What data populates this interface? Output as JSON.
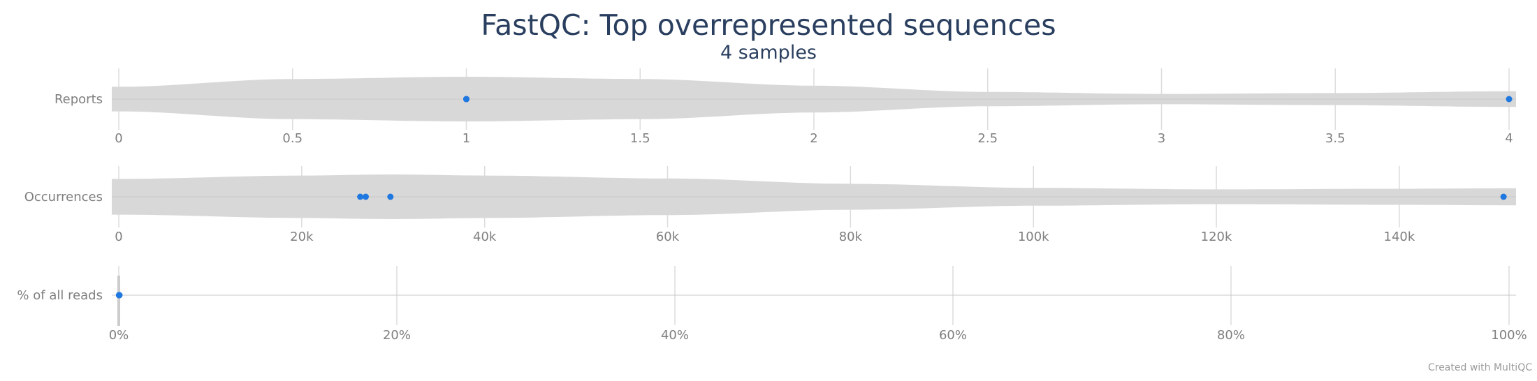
{
  "title": "FastQC: Top overrepresented sequences",
  "subtitle": "4 samples",
  "credit": "Created with MultiQC",
  "colors": {
    "point": "#1f77e0",
    "violin": "#d8d8d8",
    "grid": "#dcdcdc",
    "title": "#2a3f5f",
    "label": "#7f7f7f"
  },
  "chart_data": {
    "type": "violin",
    "title": "FastQC: Top overrepresented sequences",
    "subtitle": "4 samples",
    "grid": true,
    "rows": [
      {
        "label": "Reports",
        "xlim": [
          0,
          4
        ],
        "ticks": [
          0,
          0.5,
          1,
          1.5,
          2,
          2.5,
          3,
          3.5,
          4
        ],
        "tick_labels": [
          "0",
          "0.5",
          "1",
          "1.5",
          "2",
          "2.5",
          "3",
          "3.5",
          "4"
        ],
        "points": [
          1,
          1,
          1,
          4
        ],
        "density": [
          [
            0,
            0.55
          ],
          [
            0.5,
            0.9
          ],
          [
            1,
            1.0
          ],
          [
            1.5,
            0.9
          ],
          [
            2,
            0.6
          ],
          [
            2.5,
            0.32
          ],
          [
            3,
            0.23
          ],
          [
            3.5,
            0.27
          ],
          [
            4,
            0.35
          ]
        ]
      },
      {
        "label": "Occurrences",
        "xlim": [
          0,
          152000
        ],
        "ticks": [
          0,
          20000,
          40000,
          60000,
          80000,
          100000,
          120000,
          140000
        ],
        "tick_labels": [
          "0",
          "20k",
          "40k",
          "60k",
          "80k",
          "100k",
          "120k",
          "140k"
        ],
        "points": [
          26400,
          27000,
          29700,
          151400
        ],
        "density": [
          [
            0,
            0.8
          ],
          [
            20000,
            0.95
          ],
          [
            30000,
            1.0
          ],
          [
            40000,
            0.95
          ],
          [
            60000,
            0.82
          ],
          [
            80000,
            0.58
          ],
          [
            100000,
            0.4
          ],
          [
            120000,
            0.33
          ],
          [
            140000,
            0.36
          ],
          [
            152000,
            0.38
          ]
        ]
      },
      {
        "label": "% of all reads",
        "xlim": [
          0,
          100
        ],
        "ticks": [
          0,
          20,
          40,
          60,
          80,
          100
        ],
        "tick_labels": [
          "0%",
          "20%",
          "40%",
          "60%",
          "80%",
          "100%"
        ],
        "points": [
          0.02,
          0.02,
          0.03,
          0.05
        ],
        "density": []
      }
    ]
  }
}
